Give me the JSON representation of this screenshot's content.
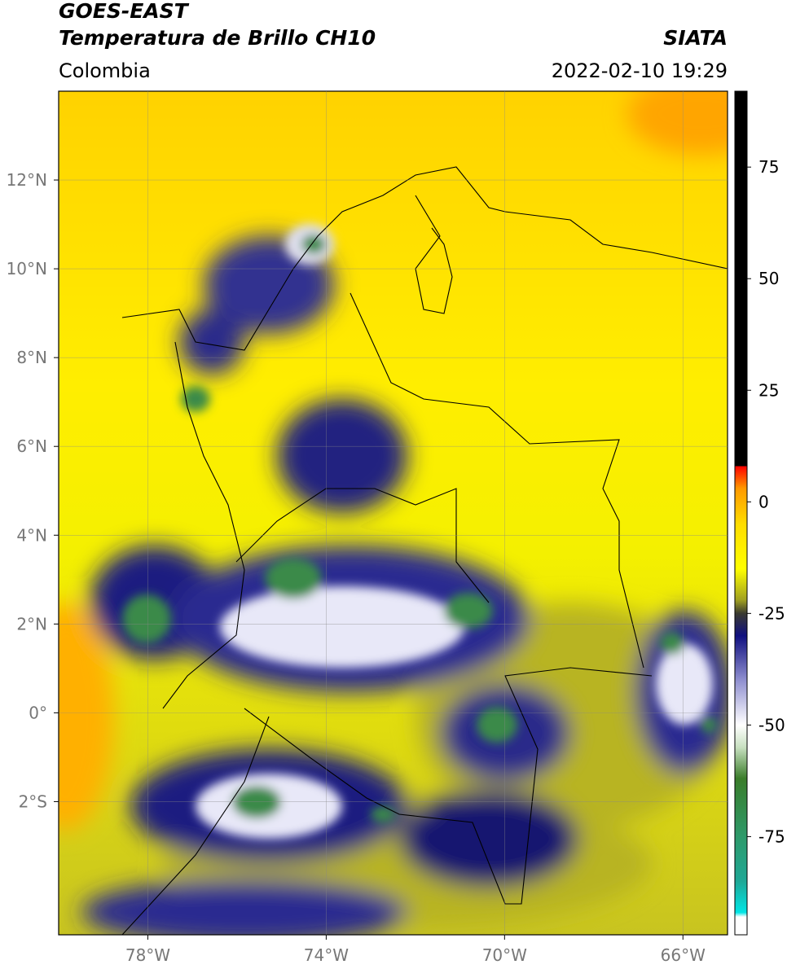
{
  "chart_data": {
    "type": "map",
    "title": "GOES-EAST",
    "subtitle": "Temperatura de Brillo CH10",
    "region": "Colombia",
    "source": "SIATA",
    "datetime": "2022-02-10 19:29",
    "xlim": [
      -80,
      -65
    ],
    "ylim": [
      -5,
      14
    ],
    "xticks": [
      {
        "value": -78,
        "label": "78°W"
      },
      {
        "value": -74,
        "label": "74°W"
      },
      {
        "value": -70,
        "label": "70°W"
      },
      {
        "value": -66,
        "label": "66°W"
      }
    ],
    "yticks": [
      {
        "value": 12,
        "label": "12°N"
      },
      {
        "value": 10,
        "label": "10°N"
      },
      {
        "value": 8,
        "label": "8°N"
      },
      {
        "value": 6,
        "label": "6°N"
      },
      {
        "value": 4,
        "label": "4°N"
      },
      {
        "value": 2,
        "label": "2°N"
      },
      {
        "value": 0,
        "label": "0°"
      },
      {
        "value": -2,
        "label": "2°S"
      }
    ],
    "grid": true,
    "colorbar": {
      "lim": [
        -97,
        92
      ],
      "ticks": [
        75,
        50,
        25,
        0,
        -25,
        -50,
        -75
      ],
      "colormap": [
        {
          "value": -97,
          "color": "#ffffff"
        },
        {
          "value": -93,
          "color": "#ffffff"
        },
        {
          "value": -92,
          "color": "#00e5e5"
        },
        {
          "value": -85,
          "color": "#1fa896"
        },
        {
          "value": -75,
          "color": "#2e9a6a"
        },
        {
          "value": -62,
          "color": "#3a7d2a"
        },
        {
          "value": -55,
          "color": "#c8e0c0"
        },
        {
          "value": -50,
          "color": "#ffffff"
        },
        {
          "value": -40,
          "color": "#9090d0"
        },
        {
          "value": -30,
          "color": "#101080"
        },
        {
          "value": -25,
          "color": "#3a3a30"
        },
        {
          "value": -22,
          "color": "#a0a020"
        },
        {
          "value": -15,
          "color": "#ffff00"
        },
        {
          "value": -5,
          "color": "#ffdd00"
        },
        {
          "value": 3,
          "color": "#ff9900"
        },
        {
          "value": 8,
          "color": "#ff0000"
        },
        {
          "value": 8.01,
          "color": "#000000"
        },
        {
          "value": 92,
          "color": "#000000"
        }
      ]
    }
  }
}
